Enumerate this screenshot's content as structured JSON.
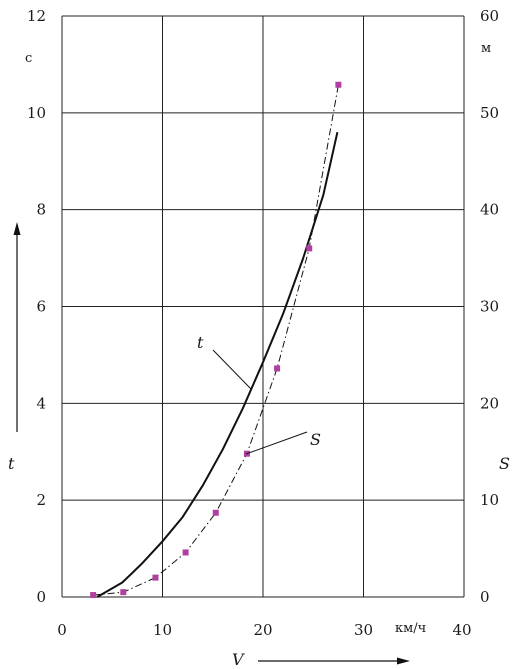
{
  "chart_data": {
    "type": "line",
    "title": "",
    "x": {
      "label": "V",
      "unit": "км/ч",
      "lim": [
        0,
        40
      ],
      "ticks": [
        0,
        10,
        20,
        30,
        40
      ],
      "tick_labels": [
        "0",
        "10",
        "20",
        "30",
        "40"
      ]
    },
    "y_left": {
      "label": "t",
      "unit": "с",
      "lim": [
        0,
        12
      ],
      "ticks": [
        0,
        2,
        4,
        6,
        8,
        10,
        12
      ],
      "tick_labels": [
        "0",
        "2",
        "4",
        "6",
        "8",
        "10",
        "12"
      ]
    },
    "y_right": {
      "label": "S",
      "unit": "м",
      "lim": [
        0,
        60
      ],
      "ticks": [
        0,
        10,
        20,
        30,
        40,
        50,
        60
      ],
      "tick_labels": [
        "0",
        "10",
        "20",
        "30",
        "40",
        "50",
        "60"
      ]
    },
    "grid": true,
    "series": [
      {
        "name": "t",
        "axis": "left",
        "style": "solid",
        "color": "#111111",
        "x": [
          3.5,
          6,
          8,
          10,
          12,
          14,
          16,
          18,
          20,
          22,
          24,
          26,
          27.4
        ],
        "y": [
          0,
          0.3,
          0.7,
          1.15,
          1.65,
          2.3,
          3.05,
          3.9,
          4.85,
          5.85,
          7.0,
          8.3,
          9.6
        ]
      },
      {
        "name": "S",
        "axis": "right",
        "style": "dash-dot",
        "color": "#111111",
        "marker_color": "#b040a0",
        "x": [
          3.1,
          6.1,
          9.3,
          12.3,
          15.3,
          18.4,
          21.4,
          24.6,
          27.5
        ],
        "y": [
          0.2,
          0.5,
          2.0,
          4.6,
          8.7,
          14.8,
          23.6,
          36.0,
          52.9
        ]
      }
    ],
    "annotations": [
      {
        "text": "t",
        "series": "t"
      },
      {
        "text": "S",
        "series": "S"
      }
    ]
  }
}
